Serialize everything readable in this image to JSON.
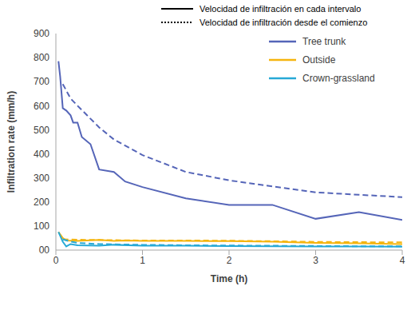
{
  "chart_data": {
    "type": "line",
    "x_label": "Time (h)",
    "y_label": "Infiltration rate (mm/h)",
    "xlim": [
      0,
      4
    ],
    "xticks": [
      0,
      1,
      2,
      3,
      4
    ],
    "ylim": [
      0,
      900
    ],
    "yticks": [
      {
        "value": 0,
        "label": "00"
      },
      100,
      200,
      300,
      400,
      500,
      600,
      700,
      800,
      900
    ],
    "grid": false,
    "legend": "top-right",
    "style_legend": [
      {
        "label": "Velocidad de infiltración en cada intervalo",
        "line_style": "solid"
      },
      {
        "label": "Velocidad de infiltración desde el comienzo",
        "line_style": "dotted"
      }
    ],
    "series": [
      {
        "name": "Tree trunk",
        "color": "#5565b8",
        "line_style": "solid",
        "x": [
          0.03,
          0.05,
          0.08,
          0.12,
          0.17,
          0.2,
          0.25,
          0.3,
          0.4,
          0.5,
          0.67,
          0.8,
          1.0,
          1.5,
          2.0,
          2.5,
          3.0,
          3.5,
          4.0
        ],
        "values": [
          785,
          720,
          590,
          580,
          560,
          530,
          530,
          470,
          440,
          335,
          325,
          285,
          262,
          215,
          188,
          188,
          130,
          158,
          125
        ]
      },
      {
        "name": "Tree trunk",
        "color": "#5565b8",
        "line_style": "dashed",
        "x": [
          0.08,
          0.17,
          0.25,
          0.5,
          0.67,
          1.0,
          1.5,
          2.0,
          2.5,
          3.0,
          3.5,
          4.0
        ],
        "values": [
          690,
          630,
          600,
          510,
          460,
          395,
          325,
          290,
          265,
          240,
          230,
          220
        ]
      },
      {
        "name": "Outside",
        "color": "#f5b50f",
        "line_style": "solid",
        "x": [
          0.03,
          0.08,
          0.12,
          0.25,
          0.5,
          0.67,
          0.8,
          1.0,
          1.5,
          2.0,
          2.5,
          3.0,
          3.5,
          4.0
        ],
        "values": [
          75,
          50,
          40,
          38,
          42,
          38,
          40,
          38,
          38,
          37,
          35,
          30,
          28,
          25
        ]
      },
      {
        "name": "Outside",
        "color": "#f5b50f",
        "line_style": "dashed",
        "x": [
          0.08,
          0.25,
          0.5,
          1.0,
          1.5,
          2.0,
          2.5,
          3.0,
          3.5,
          4.0
        ],
        "values": [
          45,
          43,
          42,
          40,
          40,
          39,
          37,
          34,
          33,
          32
        ]
      },
      {
        "name": "Crown-grassland",
        "color": "#27a9d6",
        "line_style": "solid",
        "x": [
          0.03,
          0.08,
          0.12,
          0.17,
          0.25,
          0.5,
          0.67,
          1.0,
          1.5,
          2.0,
          2.5,
          3.0,
          3.5,
          4.0
        ],
        "values": [
          75,
          35,
          15,
          25,
          20,
          18,
          22,
          18,
          18,
          17,
          16,
          15,
          15,
          14
        ]
      },
      {
        "name": "Crown-grassland",
        "color": "#27a9d6",
        "line_style": "dashed",
        "x": [
          0.08,
          0.17,
          0.25,
          0.5,
          1.0,
          1.5,
          2.0,
          2.5,
          3.0,
          3.5,
          4.0
        ],
        "values": [
          45,
          35,
          30,
          25,
          22,
          20,
          19,
          18,
          17,
          16,
          16
        ]
      }
    ]
  }
}
